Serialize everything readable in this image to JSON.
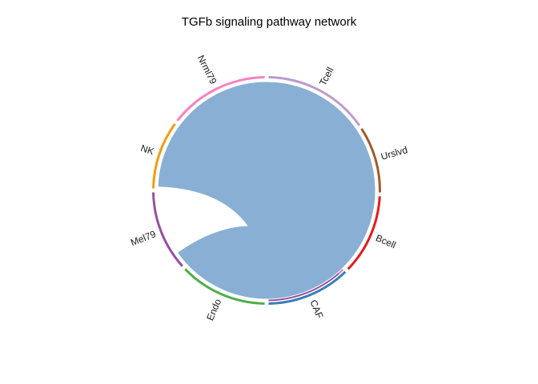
{
  "title": "TGFb signaling pathway network",
  "chart_data": {
    "type": "chord",
    "title": "TGFb signaling pathway network",
    "sectors": [
      {
        "name": "Tcell",
        "color": "#BC9BCC",
        "start": 89,
        "end": 35
      },
      {
        "name": "Urslvd",
        "color": "#A35A2E",
        "start": 33,
        "end": -1
      },
      {
        "name": "Bcell",
        "color": "#E41A1C",
        "start": -3,
        "end": -44
      },
      {
        "name": "CAF",
        "color": "#377EB8",
        "start": -46,
        "end": -89
      },
      {
        "name": "Endo",
        "color": "#4DAF4A",
        "start": -91,
        "end": -136
      },
      {
        "name": "Mel79",
        "color": "#984EA3",
        "start": -138,
        "end": -179
      },
      {
        "name": "NK",
        "color": "#F39C12",
        "start": 179,
        "end": 144
      },
      {
        "name": "Nrml79",
        "color": "#F781BF",
        "start": 142,
        "end": 91
      }
    ],
    "inner_tracks": [
      {
        "sector": "CAF",
        "color": "#984EA3",
        "start": -46,
        "end": -89
      },
      {
        "sector": "CAF",
        "color": "#F781BF",
        "start": -46,
        "end": -49
      }
    ],
    "links": [
      {
        "source": "Mel79",
        "target": "CAF",
        "color": "#89AFD4",
        "s1": 178,
        "s2": -145,
        "t1": -50,
        "t2": -89
      },
      {
        "source": "Nrml79",
        "target": "CAF",
        "color": "#89AFD4",
        "s1": 135,
        "s2": 92,
        "t1": -45.8,
        "t2": -48.5
      }
    ]
  }
}
